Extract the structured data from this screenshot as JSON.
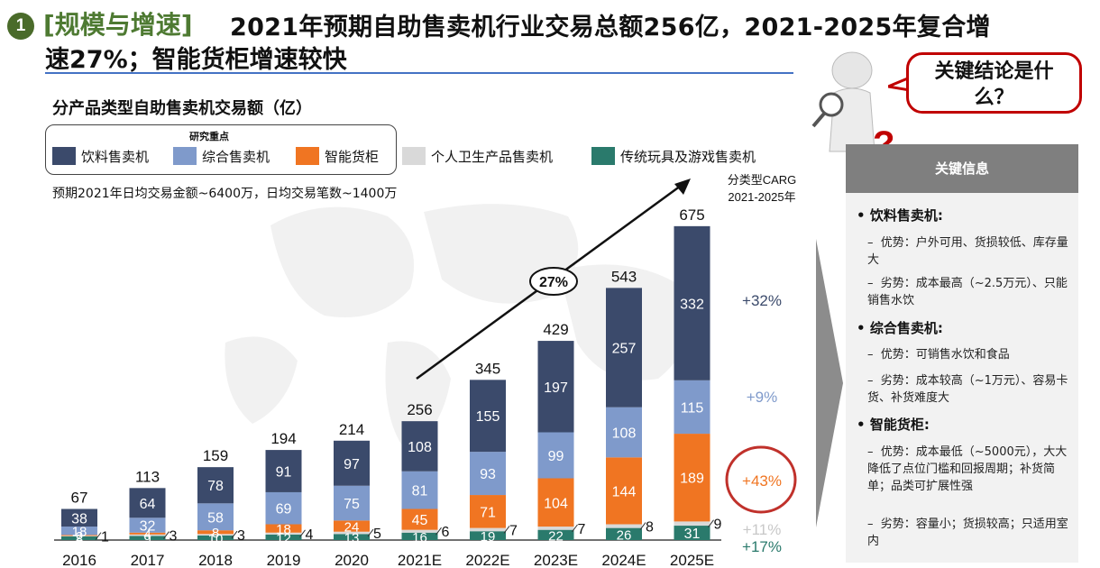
{
  "header": {
    "number": "1",
    "tag": "[规模与增速]",
    "title_line1": "2021年预期自助售卖机行业交易总额256亿，2021-2025年复合增",
    "title_line2": "速27%；智能货柜增速较快"
  },
  "callout": {
    "line1": "关键结论是什",
    "line2": "么？"
  },
  "chart_data": {
    "type": "bar",
    "stacked": true,
    "title": "分产品类型自助售卖机交易额（亿）",
    "legend_caption": "研究重点",
    "subtitle": "预期2021年日均交易金额~6400万，日均交易笔数~1400万",
    "categories": [
      "2016",
      "2017",
      "2018",
      "2019",
      "2020",
      "2021E",
      "2022E",
      "2023E",
      "2024E",
      "2025E"
    ],
    "totals": [
      "67",
      "113",
      "159",
      "194",
      "214",
      "256",
      "345",
      "429",
      "543",
      "675"
    ],
    "series": [
      {
        "name": "传统玩具及游戏售卖机",
        "color": "#2a7a6c",
        "values": [
          8,
          9,
          10,
          12,
          13,
          16,
          19,
          22,
          26,
          31
        ]
      },
      {
        "name": "个人卫生产品售卖机",
        "color": "#d9d9d9",
        "values": [
          1,
          3,
          3,
          4,
          5,
          6,
          7,
          7,
          8,
          9
        ]
      },
      {
        "name": "智能货柜",
        "color": "#f07522",
        "values": [
          2,
          4,
          8,
          18,
          24,
          45,
          71,
          104,
          144,
          189
        ]
      },
      {
        "name": "综合售卖机",
        "color": "#7f9acb",
        "values": [
          18,
          32,
          58,
          69,
          75,
          81,
          93,
          99,
          108,
          115
        ]
      },
      {
        "name": "饮料售卖机",
        "color": "#3b4a6b",
        "values": [
          38,
          64,
          78,
          91,
          97,
          108,
          155,
          197,
          257,
          332
        ]
      }
    ],
    "legend_order": [
      "饮料售卖机",
      "综合售卖机",
      "智能货柜",
      "个人卫生产品售卖机",
      "传统玩具及游戏售卖机"
    ],
    "growth_annotation": "27%",
    "carg_title_line1": "分类型CARG",
    "carg_title_line2": "2021-2025年",
    "carg": [
      {
        "series": "饮料售卖机",
        "value": "+32%",
        "color": "#3b4a6b"
      },
      {
        "series": "综合售卖机",
        "value": "+9%",
        "color": "#7f9acb"
      },
      {
        "series": "智能货柜",
        "value": "+43%",
        "color": "#f07522"
      },
      {
        "series": "个人卫生产品售卖机",
        "value": "+11%",
        "color": "#c8c8c8"
      },
      {
        "series": "传统玩具及游戏售卖机",
        "value": "+17%",
        "color": "#2a7a6c"
      }
    ]
  },
  "panel": {
    "title": "关键信息",
    "sections": [
      {
        "heading": "饮料售卖机:",
        "items": [
          "优势：户外可用、货损较低、库存量大",
          "劣势：成本最高（~2.5万元）、只能销售水饮"
        ]
      },
      {
        "heading": "综合售卖机:",
        "items": [
          "优势：可销售水饮和食品",
          "劣势：成本较高（~1万元）、容易卡货、补货难度大"
        ]
      },
      {
        "heading": "智能货柜:",
        "items": [
          "优势：成本最低（~5000元），大大降低了点位门槛和回报周期；补货简单；品类可扩展性强",
          "劣势：容量小；货损较高；只适用室内"
        ]
      }
    ]
  }
}
